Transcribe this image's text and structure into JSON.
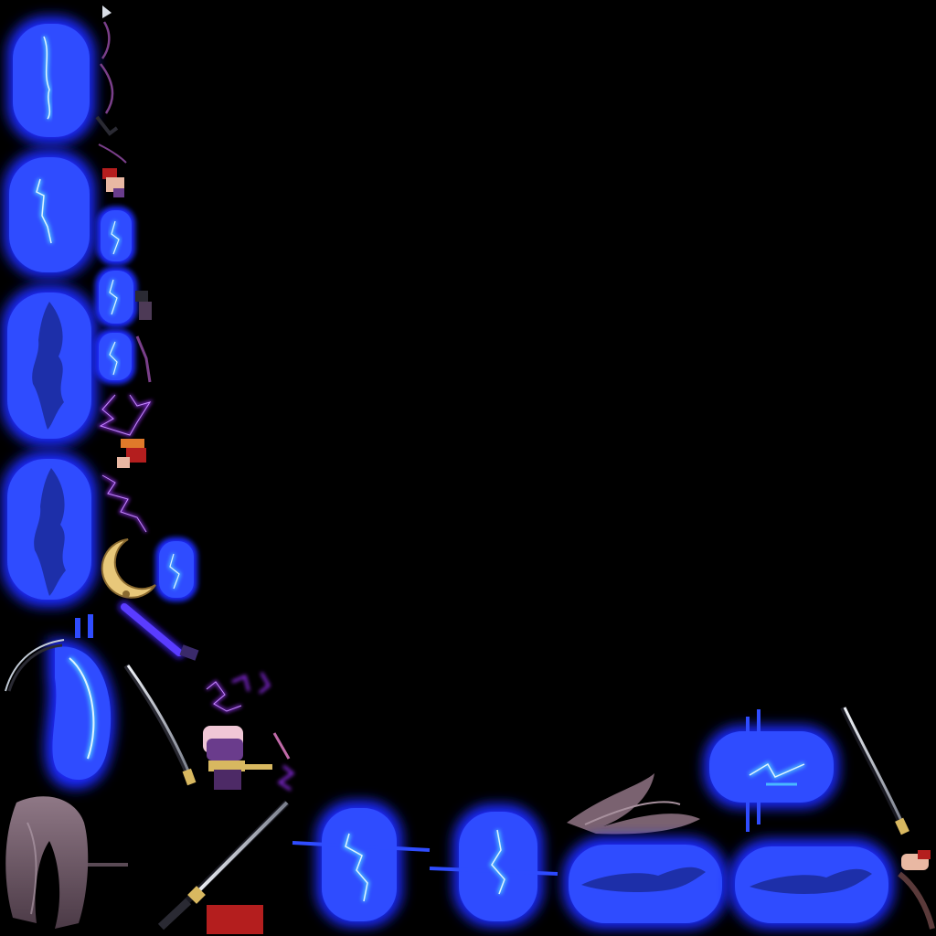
{
  "canvas": {
    "background": "#000000"
  },
  "colors": {
    "glow_outer": "#1a2cff",
    "glow_inner": "#2f5bff",
    "lightning_core": "#bfe6ff",
    "lightning_mid": "#49b8ff",
    "dark_silhouette": "#1a2a9a",
    "purple_energy": "#8a2be2",
    "violet_blade": "#5a3cff",
    "steel": "#d8dde6",
    "steel_dark": "#2a2a33",
    "gold": "#d8b860",
    "moon_gold": "#e8c87a",
    "hair_mauve": "#6d5566",
    "hair_light": "#9b8591",
    "skin": "#e9b8a3",
    "cloth_purple": "#6a3c8c",
    "cloth_pink": "#f0c7d6",
    "red_accent": "#b41e1e"
  },
  "sprites": {
    "glow_large": 4,
    "glow_small": 4,
    "glow_horizontal": 5,
    "swords": 3,
    "lightning_bolts": 4
  }
}
